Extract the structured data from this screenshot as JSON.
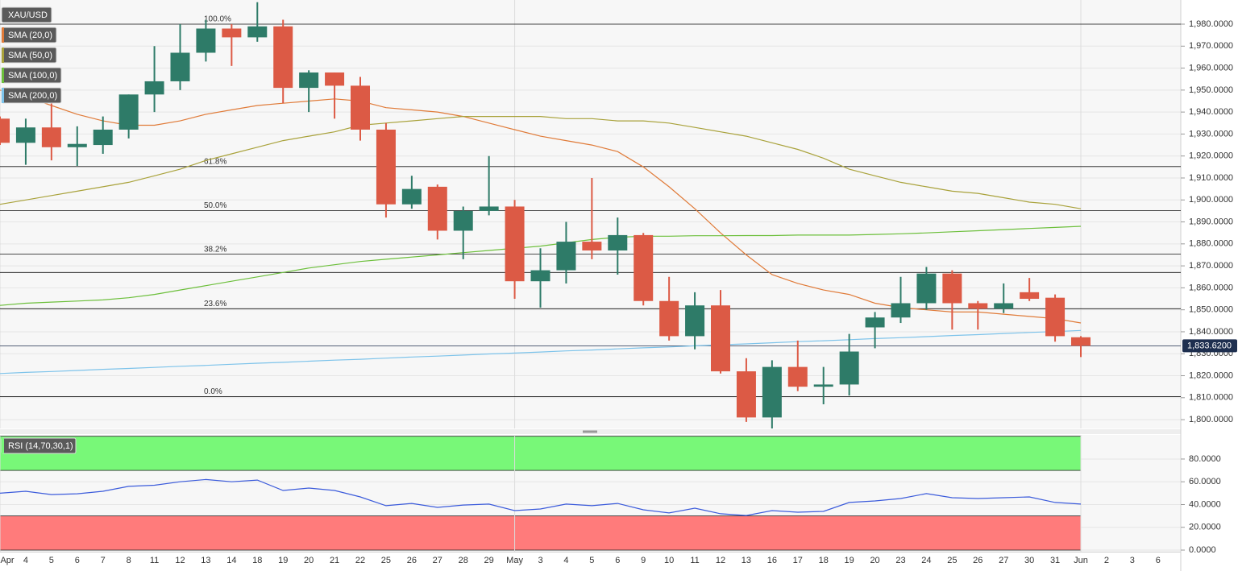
{
  "chart_data": {
    "type": "candlestick",
    "categories": [
      "Apr",
      "4",
      "5",
      "6",
      "7",
      "8",
      "11",
      "12",
      "13",
      "14",
      "18",
      "19",
      "20",
      "21",
      "22",
      "25",
      "26",
      "27",
      "28",
      "29",
      "May",
      "3",
      "4",
      "5",
      "6",
      "9",
      "10",
      "11",
      "12",
      "13",
      "16",
      "17",
      "18",
      "19",
      "20",
      "23",
      "24",
      "25",
      "26",
      "27",
      "30",
      "31",
      "Jun",
      "2",
      "3",
      "6"
    ],
    "candles": {
      "name": "XAU/USD",
      "up_color": "#2e7b68",
      "down_color": "#dc5a45",
      "open": [
        1937,
        1926,
        1933,
        1924,
        1925,
        1932,
        1948,
        1954,
        1967,
        1978,
        1974,
        1979,
        1951,
        1958,
        1952,
        1932,
        1898,
        1906,
        1886,
        1895,
        1897,
        1863,
        1868,
        1881,
        1877,
        1884,
        1854,
        1838,
        1852,
        1822,
        1801,
        1824,
        1815,
        1816,
        1842,
        1846.5,
        1853,
        1866.5,
        1853,
        1850.5,
        1858,
        1855.5,
        1837.5,
        null,
        null,
        null
      ],
      "high": [
        1938,
        1937,
        1944,
        1933.5,
        1938,
        1948,
        1970,
        1980,
        1982,
        1980,
        1990,
        1982,
        1959,
        1958,
        1956,
        1935,
        1911,
        1907,
        1897,
        1920,
        1900,
        1878,
        1890,
        1910,
        1892,
        1885,
        1865,
        1858,
        1859,
        1828,
        1827,
        1836,
        1824,
        1839,
        1849,
        1865,
        1869.5,
        1868,
        1854,
        1862,
        1864.5,
        1857,
        1838,
        null,
        null,
        null
      ],
      "low": [
        1925,
        1916,
        1918,
        1915.5,
        1921,
        1928,
        1940,
        1950,
        1963,
        1961,
        1972,
        1944,
        1940,
        1937,
        1927,
        1892,
        1896,
        1882,
        1873,
        1893,
        1855,
        1851,
        1862,
        1873,
        1866,
        1852,
        1836,
        1832,
        1821,
        1799,
        1796,
        1813,
        1807,
        1811,
        1832.5,
        1844,
        1850,
        1841,
        1841,
        1848.5,
        1854,
        1835.5,
        1828.5,
        null,
        null,
        null
      ],
      "close": [
        1926,
        1933,
        1924,
        1925.5,
        1932,
        1948,
        1954,
        1967,
        1978,
        1974,
        1979,
        1951,
        1958,
        1952,
        1932,
        1898,
        1905,
        1886,
        1895,
        1897,
        1863,
        1868,
        1881,
        1877,
        1884,
        1854,
        1838,
        1852,
        1822,
        1801,
        1824,
        1815,
        1816,
        1831,
        1846.5,
        1853,
        1866.5,
        1853,
        1850.5,
        1853,
        1855,
        1838,
        1833.62,
        null,
        null,
        null
      ]
    },
    "overlays": [
      {
        "name": "SMA (20,0)",
        "color": "#e07b39",
        "values": [
          1950,
          1947,
          1943,
          1939,
          1936,
          1934,
          1934,
          1936,
          1939,
          1941,
          1943,
          1944,
          1945,
          1946,
          1945,
          1942,
          1941,
          1940,
          1938,
          1935,
          1932,
          1929,
          1927,
          1925,
          1922,
          1915,
          1906,
          1896,
          1885,
          1875,
          1866,
          1862,
          1859,
          1857,
          1853,
          1851,
          1850,
          1849,
          1849,
          1848,
          1847,
          1846,
          1844,
          null,
          null,
          null
        ]
      },
      {
        "name": "SMA (50,0)",
        "color": "#a9a23b",
        "values": [
          1898,
          1900,
          1902,
          1904,
          1906,
          1908,
          1911,
          1914,
          1918,
          1921,
          1924,
          1927,
          1929,
          1931,
          1934,
          1935,
          1936,
          1937,
          1938,
          1938,
          1938,
          1938,
          1937,
          1937,
          1936,
          1936,
          1935,
          1933,
          1931,
          1929,
          1926,
          1923,
          1919,
          1914,
          1911,
          1908,
          1906,
          1904,
          1903,
          1901,
          1899,
          1898,
          1896,
          null,
          null,
          null
        ]
      },
      {
        "name": "SMA (100,0)",
        "color": "#6cbf3b",
        "values": [
          1852,
          1853,
          1853.5,
          1854,
          1854.5,
          1855.5,
          1857,
          1859,
          1861,
          1863,
          1865,
          1867,
          1869,
          1870.5,
          1872,
          1873,
          1874,
          1875,
          1876,
          1877,
          1878,
          1879,
          1880.5,
          1882,
          1883,
          1883.5,
          1883.5,
          1883.7,
          1883.7,
          1883.8,
          1883.8,
          1884,
          1884,
          1884,
          1884.3,
          1884.6,
          1885,
          1885.5,
          1886,
          1886.5,
          1887,
          1887.5,
          1888,
          null,
          null,
          null
        ]
      },
      {
        "name": "SMA (200,0)",
        "color": "#7dc3ea",
        "values": [
          1821.0,
          1821.5,
          1821.9,
          1822.4,
          1822.9,
          1823.3,
          1823.8,
          1824.3,
          1824.7,
          1825.2,
          1825.7,
          1826.1,
          1826.6,
          1827.1,
          1827.5,
          1828.0,
          1828.5,
          1828.9,
          1829.4,
          1829.9,
          1830.3,
          1830.8,
          1831.3,
          1831.7,
          1832.2,
          1832.7,
          1833.1,
          1833.6,
          1834.1,
          1834.5,
          1835.0,
          1835.5,
          1835.9,
          1836.4,
          1836.9,
          1837.3,
          1837.8,
          1838.3,
          1838.7,
          1839.2,
          1839.7,
          1840.1,
          1840.6,
          null,
          null,
          null
        ]
      }
    ],
    "fibonacci": [
      {
        "label": "100.0%",
        "value": 1980
      },
      {
        "label": "61.8%",
        "value": 1915.2
      },
      {
        "label": "50.0%",
        "value": 1895.2
      },
      {
        "label": "38.2%",
        "value": 1875.3
      },
      {
        "label": "23.6%",
        "value": 1850.5
      },
      {
        "label": "0.0%",
        "value": 1810.5
      }
    ],
    "levels": [
      1867
    ],
    "last_price": {
      "value": 1833.62,
      "label": "1,833.6200",
      "color": "#1e2f4f"
    },
    "ylim": [
      1796,
      1991
    ],
    "yticks": [
      {
        "value": 1800,
        "label": "1,800.0000"
      },
      {
        "value": 1810,
        "label": "1,810.0000"
      },
      {
        "value": 1820,
        "label": "1,820.0000"
      },
      {
        "value": 1830,
        "label": "1,830.0000"
      },
      {
        "value": 1840,
        "label": "1,840.0000"
      },
      {
        "value": 1850,
        "label": "1,850.0000"
      },
      {
        "value": 1860,
        "label": "1,860.0000"
      },
      {
        "value": 1870,
        "label": "1,870.0000"
      },
      {
        "value": 1880,
        "label": "1,880.0000"
      },
      {
        "value": 1890,
        "label": "1,890.0000"
      },
      {
        "value": 1900,
        "label": "1,900.0000"
      },
      {
        "value": 1910,
        "label": "1,910.0000"
      },
      {
        "value": 1920,
        "label": "1,920.0000"
      },
      {
        "value": 1930,
        "label": "1,930.0000"
      },
      {
        "value": 1940,
        "label": "1,940.0000"
      },
      {
        "value": 1950,
        "label": "1,950.0000"
      },
      {
        "value": 1960,
        "label": "1,960.0000"
      },
      {
        "value": 1970,
        "label": "1,970.0000"
      },
      {
        "value": 1980,
        "label": "1,980.0000"
      }
    ],
    "grid": true,
    "rsi": {
      "name": "RSI (14,70,30,1)",
      "color": "#3b5bdb",
      "values": [
        50,
        51.7,
        48.8,
        49.5,
        51.7,
        56,
        57,
        60,
        62,
        60,
        61.5,
        52.4,
        54.5,
        52.4,
        46.7,
        39,
        41,
        37.5,
        39.6,
        40.4,
        34.7,
        36.1,
        40.4,
        39,
        41,
        35.4,
        32.6,
        36.8,
        31.9,
        30.4,
        34.7,
        33.3,
        34,
        41.8,
        43.2,
        45.3,
        49.6,
        46,
        45.3,
        46,
        46.7,
        41.8,
        40.4,
        null,
        null,
        null
      ],
      "bands": [
        {
          "from": 70,
          "to": 100,
          "color": "#78f878"
        },
        {
          "from": 0,
          "to": 30,
          "color": "#ff7b7b"
        }
      ],
      "ylim": [
        -1.4,
        101.2
      ],
      "yticks": [
        {
          "value": 0,
          "label": "0.0000"
        },
        {
          "value": 20,
          "label": "20.0000"
        },
        {
          "value": 40,
          "label": "40.0000"
        },
        {
          "value": 60,
          "label": "60.0000"
        },
        {
          "value": 80,
          "label": "80.0000"
        }
      ]
    }
  }
}
